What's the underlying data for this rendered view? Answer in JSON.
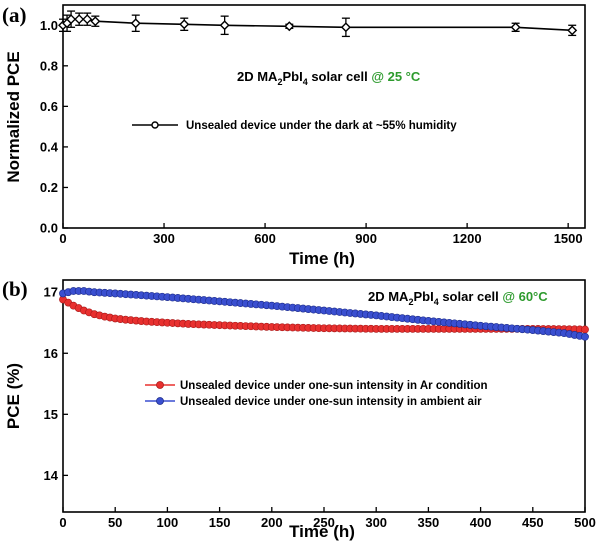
{
  "chart_data": [
    {
      "panel": "(a)",
      "type": "line",
      "xlabel": "Time (h)",
      "ylabel": "Normalized PCE",
      "xlim": [
        0,
        1550
      ],
      "ylim": [
        0.0,
        1.1
      ],
      "xticks": [
        0,
        300,
        600,
        900,
        1200,
        1500
      ],
      "yticks": [
        0.0,
        0.2,
        0.4,
        0.6,
        0.8,
        1.0
      ],
      "ytick_labels": [
        "0.0",
        "0.2",
        "0.4",
        "0.6",
        "0.8",
        "1.0"
      ],
      "title_parts": {
        "prefix": "2D MA",
        "sub1": "2",
        "mid": "PbI",
        "sub2": "4",
        "suffix": " solar cell ",
        "temp": "@ 25 °C"
      },
      "temp_color": "#2e9b2e",
      "series": [
        {
          "name": "Unsealed device under the dark at ~55% humidity",
          "color": "#000000",
          "x": [
            0,
            12,
            24,
            48,
            72,
            96,
            216,
            360,
            480,
            672,
            840,
            1344,
            1512
          ],
          "y": [
            1.0,
            1.01,
            1.03,
            1.03,
            1.03,
            1.02,
            1.01,
            1.005,
            1.0,
            0.995,
            0.99,
            0.99,
            0.975
          ],
          "err": [
            0.03,
            0.04,
            0.04,
            0.03,
            0.03,
            0.025,
            0.04,
            0.03,
            0.045,
            0.01,
            0.045,
            0.02,
            0.025
          ]
        }
      ]
    },
    {
      "panel": "(b)",
      "type": "line",
      "xlabel": "Time (h)",
      "ylabel": "PCE (%)",
      "xlim": [
        0,
        500
      ],
      "ylim": [
        13.4,
        17.2
      ],
      "xticks": [
        0,
        50,
        100,
        150,
        200,
        250,
        300,
        350,
        400,
        450,
        500
      ],
      "yticks": [
        14,
        15,
        16,
        17
      ],
      "title_parts": {
        "prefix": "2D MA",
        "sub1": "2",
        "mid": "PbI",
        "sub2": "4",
        "suffix": " solar cell ",
        "temp": "@ 60°C"
      },
      "temp_color": "#2e9b2e",
      "series": [
        {
          "name": "Unsealed device under one-sun intensity in Ar condition",
          "color": "#e8302f",
          "x": [
            0,
            10,
            20,
            30,
            40,
            50,
            60,
            80,
            100,
            120,
            150,
            200,
            250,
            300,
            350,
            400,
            450,
            500
          ],
          "y": [
            16.88,
            16.78,
            16.7,
            16.64,
            16.6,
            16.57,
            16.55,
            16.52,
            16.5,
            16.48,
            16.46,
            16.43,
            16.41,
            16.4,
            16.4,
            16.4,
            16.4,
            16.39
          ]
        },
        {
          "name": "Unsealed device under one-sun intensity in ambient air",
          "color": "#3a4fd0",
          "x": [
            0,
            10,
            20,
            30,
            50,
            100,
            150,
            200,
            250,
            300,
            350,
            400,
            450,
            480,
            500
          ],
          "y": [
            16.98,
            17.02,
            17.02,
            17.0,
            16.98,
            16.92,
            16.85,
            16.78,
            16.7,
            16.62,
            16.53,
            16.45,
            16.38,
            16.33,
            16.27
          ]
        }
      ]
    }
  ]
}
